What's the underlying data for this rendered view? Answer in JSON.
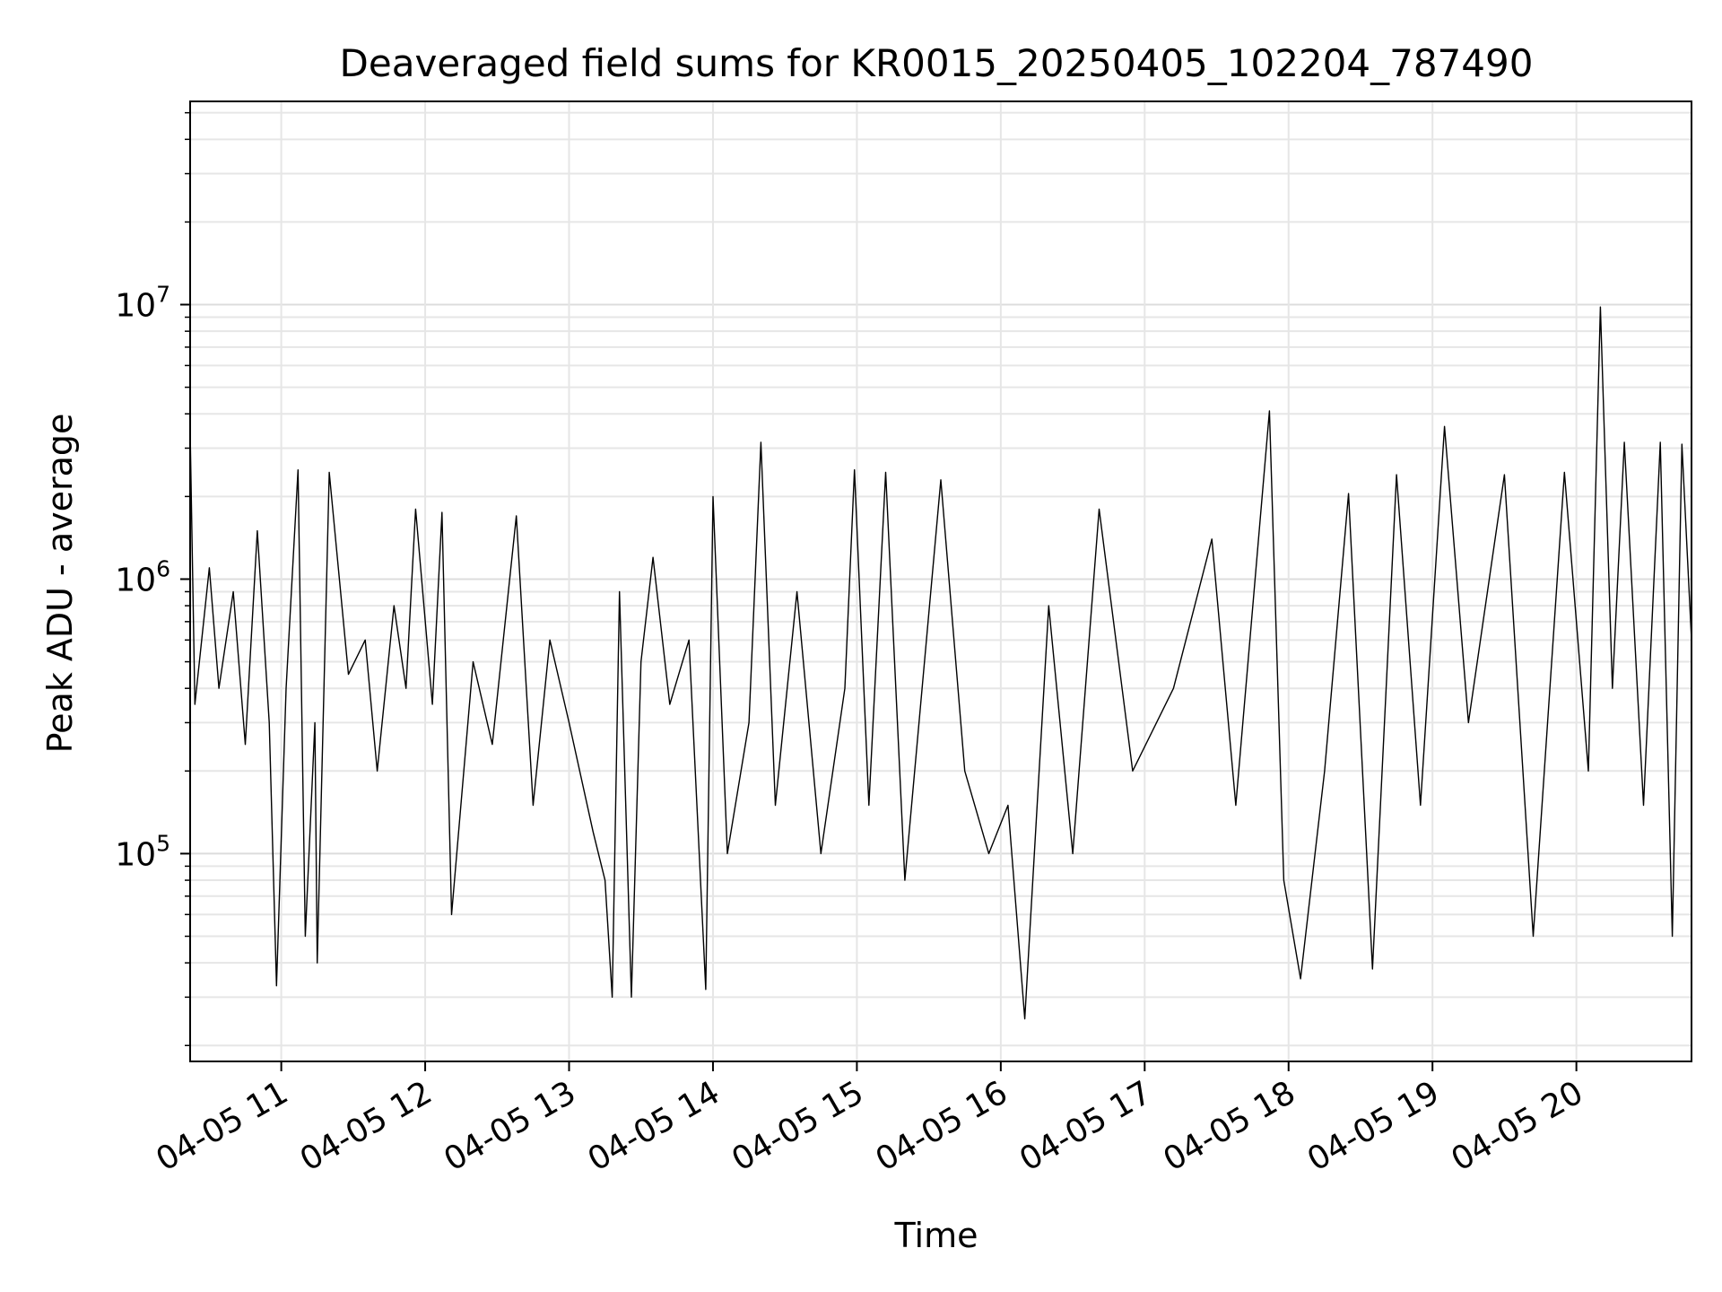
{
  "chart_data": {
    "type": "line",
    "title": "Deaveraged field sums for KR0015_20250405_102204_787490",
    "xlabel": "Time",
    "ylabel": "Peak ADU - average",
    "yscale": "log",
    "xlim": [
      "2025-04-05 10:22",
      "2025-04-05 20:48"
    ],
    "ylim": [
      17500,
      55000000
    ],
    "grid": true,
    "grid_minor": true,
    "line_color": "#000000",
    "x_ticks": [
      {
        "label": "04-05 11",
        "t": "2025-04-05 11:00"
      },
      {
        "label": "04-05 12",
        "t": "2025-04-05 12:00"
      },
      {
        "label": "04-05 13",
        "t": "2025-04-05 13:00"
      },
      {
        "label": "04-05 14",
        "t": "2025-04-05 14:00"
      },
      {
        "label": "04-05 15",
        "t": "2025-04-05 15:00"
      },
      {
        "label": "04-05 16",
        "t": "2025-04-05 16:00"
      },
      {
        "label": "04-05 17",
        "t": "2025-04-05 17:00"
      },
      {
        "label": "04-05 18",
        "t": "2025-04-05 18:00"
      },
      {
        "label": "04-05 19",
        "t": "2025-04-05 19:00"
      },
      {
        "label": "04-05 20",
        "t": "2025-04-05 20:00"
      }
    ],
    "y_ticks": [
      {
        "base": "10",
        "exp": "5",
        "value": 100000
      },
      {
        "base": "10",
        "exp": "6",
        "value": 1000000
      },
      {
        "base": "10",
        "exp": "7",
        "value": 10000000
      }
    ],
    "series": [
      {
        "points": [
          [
            "2025-04-05 10:22",
            3500000
          ],
          [
            "2025-04-05 10:24",
            350000
          ],
          [
            "2025-04-05 10:30",
            1100000
          ],
          [
            "2025-04-05 10:34",
            400000
          ],
          [
            "2025-04-05 10:40",
            900000
          ],
          [
            "2025-04-05 10:45",
            250000
          ],
          [
            "2025-04-05 10:50",
            1500000
          ],
          [
            "2025-04-05 10:55",
            300000
          ],
          [
            "2025-04-05 10:58",
            33000
          ],
          [
            "2025-04-05 11:02",
            400000
          ],
          [
            "2025-04-05 11:07",
            2500000
          ],
          [
            "2025-04-05 11:10",
            50000
          ],
          [
            "2025-04-05 11:14",
            300000
          ],
          [
            "2025-04-05 11:15",
            40000
          ],
          [
            "2025-04-05 11:20",
            2450000
          ],
          [
            "2025-04-05 11:28",
            450000
          ],
          [
            "2025-04-05 11:35",
            600000
          ],
          [
            "2025-04-05 11:40",
            200000
          ],
          [
            "2025-04-05 11:47",
            800000
          ],
          [
            "2025-04-05 11:52",
            400000
          ],
          [
            "2025-04-05 11:56",
            1800000
          ],
          [
            "2025-04-05 12:03",
            350000
          ],
          [
            "2025-04-05 12:07",
            1750000
          ],
          [
            "2025-04-05 12:11",
            60000
          ],
          [
            "2025-04-05 12:20",
            500000
          ],
          [
            "2025-04-05 12:28",
            250000
          ],
          [
            "2025-04-05 12:38",
            1700000
          ],
          [
            "2025-04-05 12:45",
            150000
          ],
          [
            "2025-04-05 12:52",
            600000
          ],
          [
            "2025-04-05 13:00",
            300000
          ],
          [
            "2025-04-05 13:10",
            120000
          ],
          [
            "2025-04-05 13:15",
            80000
          ],
          [
            "2025-04-05 13:18",
            30000
          ],
          [
            "2025-04-05 13:21",
            900000
          ],
          [
            "2025-04-05 13:26",
            30000
          ],
          [
            "2025-04-05 13:30",
            500000
          ],
          [
            "2025-04-05 13:35",
            1200000
          ],
          [
            "2025-04-05 13:42",
            350000
          ],
          [
            "2025-04-05 13:50",
            600000
          ],
          [
            "2025-04-05 13:57",
            32000
          ],
          [
            "2025-04-05 14:00",
            2000000
          ],
          [
            "2025-04-05 14:06",
            100000
          ],
          [
            "2025-04-05 14:15",
            300000
          ],
          [
            "2025-04-05 14:20",
            3150000
          ],
          [
            "2025-04-05 14:26",
            150000
          ],
          [
            "2025-04-05 14:35",
            900000
          ],
          [
            "2025-04-05 14:45",
            100000
          ],
          [
            "2025-04-05 14:55",
            400000
          ],
          [
            "2025-04-05 14:59",
            2500000
          ],
          [
            "2025-04-05 15:05",
            150000
          ],
          [
            "2025-04-05 15:12",
            2450000
          ],
          [
            "2025-04-05 15:20",
            80000
          ],
          [
            "2025-04-05 15:35",
            2300000
          ],
          [
            "2025-04-05 15:45",
            200000
          ],
          [
            "2025-04-05 15:55",
            100000
          ],
          [
            "2025-04-05 16:03",
            150000
          ],
          [
            "2025-04-05 16:10",
            25000
          ],
          [
            "2025-04-05 16:20",
            800000
          ],
          [
            "2025-04-05 16:30",
            100000
          ],
          [
            "2025-04-05 16:41",
            1800000
          ],
          [
            "2025-04-05 16:55",
            200000
          ],
          [
            "2025-04-05 17:12",
            400000
          ],
          [
            "2025-04-05 17:28",
            1400000
          ],
          [
            "2025-04-05 17:38",
            150000
          ],
          [
            "2025-04-05 17:52",
            4100000
          ],
          [
            "2025-04-05 17:58",
            80000
          ],
          [
            "2025-04-05 18:05",
            35000
          ],
          [
            "2025-04-05 18:15",
            200000
          ],
          [
            "2025-04-05 18:25",
            2050000
          ],
          [
            "2025-04-05 18:35",
            38000
          ],
          [
            "2025-04-05 18:45",
            2400000
          ],
          [
            "2025-04-05 18:55",
            150000
          ],
          [
            "2025-04-05 19:05",
            3600000
          ],
          [
            "2025-04-05 19:15",
            300000
          ],
          [
            "2025-04-05 19:30",
            2400000
          ],
          [
            "2025-04-05 19:42",
            50000
          ],
          [
            "2025-04-05 19:55",
            2450000
          ],
          [
            "2025-04-05 20:05",
            200000
          ],
          [
            "2025-04-05 20:10",
            9800000
          ],
          [
            "2025-04-05 20:15",
            400000
          ],
          [
            "2025-04-05 20:20",
            3150000
          ],
          [
            "2025-04-05 20:28",
            150000
          ],
          [
            "2025-04-05 20:35",
            3150000
          ],
          [
            "2025-04-05 20:40",
            50000
          ],
          [
            "2025-04-05 20:44",
            3100000
          ],
          [
            "2025-04-05 20:48",
            600000
          ]
        ]
      }
    ]
  }
}
